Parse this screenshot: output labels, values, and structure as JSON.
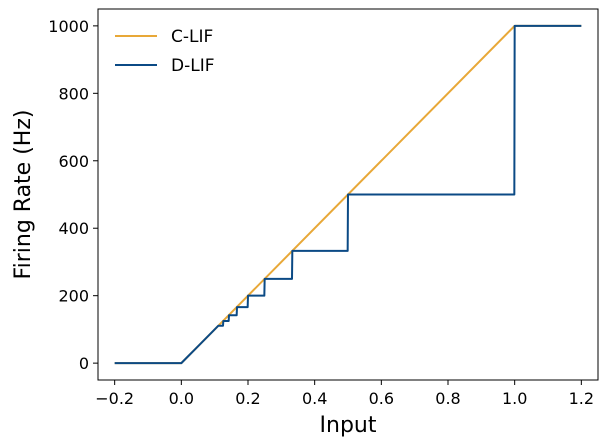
{
  "chart_data": {
    "type": "line",
    "title": "",
    "xlabel": "Input",
    "ylabel": "Firing Rate (Hz)",
    "xlim": [
      -0.25,
      1.25
    ],
    "ylim": [
      -50,
      1050
    ],
    "xticks": [
      -0.2,
      0.0,
      0.2,
      0.4,
      0.6,
      0.8,
      1.0,
      1.2
    ],
    "xtick_labels": [
      "−0.2",
      "0.0",
      "0.2",
      "0.4",
      "0.6",
      "0.8",
      "1.0",
      "1.2"
    ],
    "yticks": [
      0,
      200,
      400,
      600,
      800,
      1000
    ],
    "ytick_labels": [
      "0",
      "200",
      "400",
      "600",
      "800",
      "1000"
    ],
    "grid": false,
    "legend_position": "top-left",
    "series": [
      {
        "name": "C-LIF",
        "color": "#E8A838",
        "x": [
          -0.2,
          0.0,
          0.05,
          0.1,
          0.15,
          1.0,
          1.01,
          1.2
        ],
        "y": [
          0,
          0,
          50,
          100,
          150,
          1000,
          1000,
          1000
        ]
      },
      {
        "name": "D-LIF",
        "color": "#0B4A85",
        "x": [
          -0.2,
          0.0,
          0.02,
          0.04,
          0.06,
          0.08,
          0.1,
          0.11,
          0.111,
          0.125,
          0.126,
          0.142,
          0.143,
          0.166,
          0.167,
          0.199,
          0.2,
          0.249,
          0.25,
          0.332,
          0.333,
          0.499,
          0.5,
          0.999,
          1.0,
          1.2
        ],
        "y": [
          0,
          0,
          20,
          40,
          60,
          80,
          100,
          110,
          111,
          111,
          125,
          125,
          142,
          142,
          166,
          166,
          200,
          200,
          250,
          250,
          333,
          333,
          500,
          500,
          1000,
          1000
        ]
      }
    ]
  }
}
